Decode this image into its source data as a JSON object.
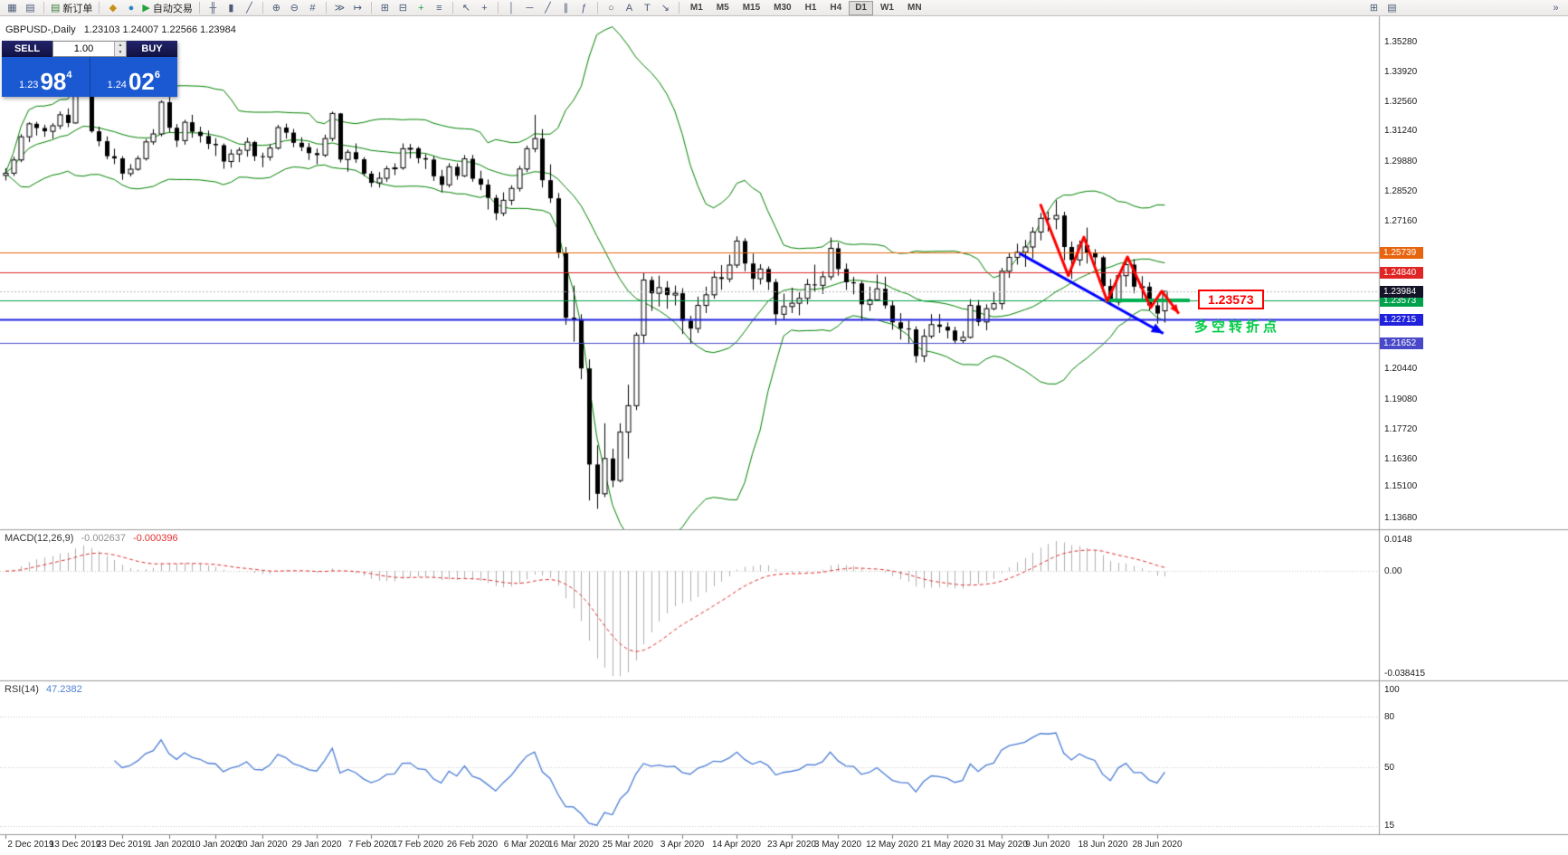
{
  "colors": {
    "bollinger": "#008200",
    "candle_up": "#ffffff",
    "candle_down": "#000000",
    "macd_hist": "#b0b0b0",
    "macd_signal": "#e03030",
    "rsi_line": "#4d7fd6",
    "annotation_red": "#ff0000",
    "annotation_blue": "#0000ff",
    "annotation_green": "#00b050",
    "widget_blue": "#1b59d2",
    "widget_navy": "#15164f"
  },
  "toolbar": {
    "groups": [
      {
        "items": [
          {
            "name": "new-chart-icon",
            "glyph": "▦"
          },
          {
            "name": "profiles-icon",
            "glyph": "▤"
          }
        ]
      },
      {
        "items": [
          {
            "name": "new-order-button",
            "glyph": "▤",
            "glyph_color": "#3a7f3a",
            "label": "新订单"
          }
        ]
      },
      {
        "items": [
          {
            "name": "market-icon",
            "glyph": "◆",
            "glyph_color": "#c89018"
          },
          {
            "name": "signals-icon",
            "glyph": "●",
            "glyph_color": "#2e86c1"
          },
          {
            "name": "autotrading-button",
            "glyph": "▶",
            "glyph_color": "#23a33a",
            "label": "自动交易"
          }
        ]
      },
      {
        "items": [
          {
            "name": "bar-chart-icon",
            "glyph": "╫"
          },
          {
            "name": "candlestick-chart-icon",
            "glyph": "▮"
          },
          {
            "name": "line-chart-icon",
            "glyph": "╱"
          }
        ]
      },
      {
        "items": [
          {
            "name": "zoom-in-icon",
            "glyph": "⊕"
          },
          {
            "name": "zoom-out-icon",
            "glyph": "⊖"
          },
          {
            "name": "grid-icon",
            "glyph": "#"
          }
        ]
      },
      {
        "items": [
          {
            "name": "auto-scroll-icon",
            "glyph": "≫"
          },
          {
            "name": "chart-shift-icon",
            "glyph": "↦"
          }
        ]
      },
      {
        "items": [
          {
            "name": "tile-windows-icon",
            "glyph": "⊞"
          },
          {
            "name": "new-window-icon",
            "glyph": "⊟"
          },
          {
            "name": "indicators-button",
            "glyph": "+",
            "glyph_color": "#1f9e3a"
          },
          {
            "name": "objects-list-icon",
            "glyph": "≡"
          }
        ]
      },
      {
        "items": [
          {
            "name": "cursor-icon",
            "glyph": "↖"
          },
          {
            "name": "crosshair-icon",
            "glyph": "+"
          }
        ]
      },
      {
        "items": [
          {
            "name": "vertical-line-icon",
            "glyph": "│"
          },
          {
            "name": "horizontal-line-icon",
            "glyph": "─"
          },
          {
            "name": "trendline-icon",
            "glyph": "╱"
          },
          {
            "name": "channel-icon",
            "glyph": "∥"
          },
          {
            "name": "fibonacci-icon",
            "glyph": "ƒ"
          }
        ]
      },
      {
        "items": [
          {
            "name": "shapes-icon",
            "glyph": "○"
          },
          {
            "name": "text-icon",
            "glyph": "A"
          },
          {
            "name": "label-icon",
            "glyph": "T"
          },
          {
            "name": "arrows-icon",
            "glyph": "↘"
          }
        ]
      }
    ],
    "timeframes": {
      "items": [
        "M1",
        "M5",
        "M15",
        "M30",
        "H1",
        "H4",
        "D1",
        "W1",
        "MN"
      ],
      "active": "D1"
    },
    "right_icons": [
      {
        "name": "window-arrange-icon",
        "glyph": "⊞"
      },
      {
        "name": "charts-list-icon",
        "glyph": "▤"
      },
      {
        "name": "toolbar-overflow-icon",
        "glyph": "»",
        "gap_before": 160
      }
    ]
  },
  "chart": {
    "symbol_label": "GBPUSD-,Daily",
    "ohlc_label": "1.23103 1.24007 1.22566 1.23984"
  },
  "one_click": {
    "sell_label": "SELL",
    "buy_label": "BUY",
    "lot_value": "1.00",
    "lot_up": "▲",
    "lot_down": "▼",
    "sell_price_small": "1.23",
    "sell_price_big": "98",
    "sell_price_sup": "4",
    "buy_price_small": "1.24",
    "buy_price_big": "02",
    "buy_price_sup": "6"
  },
  "price_axis_ticks": [
    "1.35280",
    "1.33920",
    "1.32560",
    "1.31240",
    "1.29880",
    "1.28520",
    "1.27160",
    "1.20440",
    "1.19080",
    "1.17720",
    "1.16360",
    "1.15100",
    "1.13680"
  ],
  "hlines": [
    {
      "price": 1.25739,
      "label": "1.25739",
      "color": "#e8650f",
      "width": 1
    },
    {
      "price": 1.2484,
      "label": "1.24840",
      "color": "#e02525",
      "width": 1
    },
    {
      "price": 1.23573,
      "label": "1.23573",
      "color": "#00a14b",
      "width": 1
    },
    {
      "price": 1.22715,
      "label": "1.22715",
      "color": "#2020dd",
      "width": 2
    },
    {
      "price": 1.21652,
      "label": "1.21652",
      "color": "#4848c8",
      "width": 1
    }
  ],
  "price_marker": {
    "price": 1.23984,
    "label": "1.23984",
    "bg": "#141428"
  },
  "annotations": {
    "price_callout": "1.23573",
    "turning_point_text": "多空转折点",
    "red_zigzag": [
      [
        133,
        1.2795
      ],
      [
        136.6,
        1.247
      ],
      [
        138.6,
        1.2645
      ],
      [
        141.6,
        1.2355
      ],
      [
        144.2,
        1.2555
      ],
      [
        147.2,
        1.2325
      ],
      [
        148.6,
        1.24
      ],
      [
        150.8,
        1.2298
      ]
    ],
    "blue_arrow": {
      "from": [
        130.3,
        1.2572
      ],
      "to": [
        148.8,
        1.2208
      ]
    },
    "green_segment": {
      "price": 1.23573,
      "from_i": 141.3,
      "to_i": 152.2
    }
  },
  "macd_panel": {
    "name": "MACD(12,26,9)",
    "value_main": "-0.002637",
    "value_signal": "-0.000396",
    "ticks": [
      "0.0148",
      "0.00",
      "-0.038415"
    ]
  },
  "rsi_panel": {
    "name": "RSI(14)",
    "value": "47.2382",
    "ticks": [
      "100",
      "80",
      "50",
      "15"
    ]
  },
  "date_axis": [
    {
      "label": "2 Dec 2019",
      "i": 0
    },
    {
      "label": "13 Dec 2019",
      "i": 9
    },
    {
      "label": "23 Dec 2019",
      "i": 15
    },
    {
      "label": "1 Jan 2020",
      "i": 21
    },
    {
      "label": "10 Jan 2020",
      "i": 27
    },
    {
      "label": "20 Jan 2020",
      "i": 33
    },
    {
      "label": "29 Jan 2020",
      "i": 40
    },
    {
      "label": "7 Feb 2020",
      "i": 47
    },
    {
      "label": "17 Feb 2020",
      "i": 53
    },
    {
      "label": "26 Feb 2020",
      "i": 60
    },
    {
      "label": "6 Mar 2020",
      "i": 67
    },
    {
      "label": "16 Mar 2020",
      "i": 73
    },
    {
      "label": "25 Mar 2020",
      "i": 80
    },
    {
      "label": "3 Apr 2020",
      "i": 87
    },
    {
      "label": "14 Apr 2020",
      "i": 94
    },
    {
      "label": "23 Apr 2020",
      "i": 101
    },
    {
      "label": "3 May 2020",
      "i": 107
    },
    {
      "label": "12 May 2020",
      "i": 114
    },
    {
      "label": "21 May 2020",
      "i": 121
    },
    {
      "label": "31 May 2020",
      "i": 128
    },
    {
      "label": "9 Jun 2020",
      "i": 134
    },
    {
      "label": "18 Jun 2020",
      "i": 141
    },
    {
      "label": "28 Jun 2020",
      "i": 148
    }
  ],
  "chart_data": {
    "type": "candlestick",
    "symbol": "GBPUSD",
    "timeframe": "D1",
    "y_range": [
      1.1319,
      1.3647
    ],
    "indicators": [
      "Bollinger(20,2)",
      "MACD(12,26,9)",
      "RSI(14)"
    ],
    "candles": [
      [
        1.2925,
        1.2958,
        1.2902,
        1.2935
      ],
      [
        1.2935,
        1.301,
        1.2922,
        1.2995
      ],
      [
        1.2995,
        1.3112,
        1.2985,
        1.31
      ],
      [
        1.31,
        1.3166,
        1.3076,
        1.3159
      ],
      [
        1.3159,
        1.3168,
        1.3106,
        1.314
      ],
      [
        1.314,
        1.3155,
        1.31,
        1.3125
      ],
      [
        1.3125,
        1.3162,
        1.3092,
        1.315
      ],
      [
        1.315,
        1.3215,
        1.3135,
        1.32
      ],
      [
        1.32,
        1.3229,
        1.3144,
        1.3163
      ],
      [
        1.3163,
        1.3514,
        1.316,
        1.3332
      ],
      [
        1.3332,
        1.3422,
        1.3305,
        1.3328
      ],
      [
        1.3328,
        1.3336,
        1.3118,
        1.3125
      ],
      [
        1.3125,
        1.3146,
        1.3057,
        1.308
      ],
      [
        1.308,
        1.3102,
        1.2998,
        1.3012
      ],
      [
        1.3012,
        1.3046,
        1.2976,
        1.3002
      ],
      [
        1.3002,
        1.3012,
        1.2905,
        1.2933
      ],
      [
        1.2933,
        1.2976,
        1.292,
        1.2953
      ],
      [
        1.2953,
        1.3014,
        1.2946,
        1.3001
      ],
      [
        1.3001,
        1.309,
        1.2992,
        1.3077
      ],
      [
        1.3077,
        1.3135,
        1.3064,
        1.3113
      ],
      [
        1.3113,
        1.3265,
        1.3102,
        1.3257
      ],
      [
        1.3257,
        1.3284,
        1.3121,
        1.3141
      ],
      [
        1.3141,
        1.3158,
        1.3054,
        1.3083
      ],
      [
        1.3083,
        1.3177,
        1.3064,
        1.3166
      ],
      [
        1.3166,
        1.32,
        1.3096,
        1.3123
      ],
      [
        1.3123,
        1.3146,
        1.3074,
        1.3104
      ],
      [
        1.3104,
        1.3128,
        1.3044,
        1.3068
      ],
      [
        1.3068,
        1.3094,
        1.3013,
        1.3062
      ],
      [
        1.3062,
        1.307,
        1.2955,
        1.2988
      ],
      [
        1.2988,
        1.3043,
        1.296,
        1.3022
      ],
      [
        1.3022,
        1.3052,
        1.2985,
        1.3039
      ],
      [
        1.3039,
        1.3096,
        1.301,
        1.3076
      ],
      [
        1.3076,
        1.3082,
        1.299,
        1.3012
      ],
      [
        1.3012,
        1.3028,
        1.2962,
        1.3008
      ],
      [
        1.3008,
        1.3066,
        1.2992,
        1.3049
      ],
      [
        1.3049,
        1.3154,
        1.3042,
        1.3142
      ],
      [
        1.3142,
        1.316,
        1.3092,
        1.3119
      ],
      [
        1.3119,
        1.3136,
        1.3053,
        1.3073
      ],
      [
        1.3073,
        1.3098,
        1.3035,
        1.3053
      ],
      [
        1.3053,
        1.3072,
        1.2995,
        1.3026
      ],
      [
        1.3026,
        1.3047,
        1.2976,
        1.3017
      ],
      [
        1.3017,
        1.311,
        1.3008,
        1.3092
      ],
      [
        1.3092,
        1.3214,
        1.308,
        1.3206
      ],
      [
        1.3206,
        1.3208,
        1.2984,
        1.2997
      ],
      [
        1.2997,
        1.3042,
        1.2942,
        1.303
      ],
      [
        1.303,
        1.307,
        1.2982,
        1.2998
      ],
      [
        1.2998,
        1.3008,
        1.2922,
        1.2933
      ],
      [
        1.2933,
        1.2945,
        1.2872,
        1.2891
      ],
      [
        1.2891,
        1.294,
        1.287,
        1.2912
      ],
      [
        1.2912,
        1.2968,
        1.2896,
        1.2955
      ],
      [
        1.2955,
        1.298,
        1.2926,
        1.2959
      ],
      [
        1.2959,
        1.307,
        1.295,
        1.3046
      ],
      [
        1.3046,
        1.3068,
        1.3002,
        1.3048
      ],
      [
        1.3048,
        1.3055,
        1.298,
        1.3003
      ],
      [
        1.3003,
        1.3022,
        1.2954,
        1.2997
      ],
      [
        1.2997,
        1.3012,
        1.29,
        1.2921
      ],
      [
        1.2921,
        1.295,
        1.2848,
        1.2882
      ],
      [
        1.2882,
        1.298,
        1.287,
        1.2964
      ],
      [
        1.2964,
        1.298,
        1.2905,
        1.2923
      ],
      [
        1.2923,
        1.3017,
        1.2917,
        1.3
      ],
      [
        1.3,
        1.3018,
        1.2896,
        1.291
      ],
      [
        1.291,
        1.2946,
        1.2858,
        1.2883
      ],
      [
        1.2883,
        1.2906,
        1.277,
        1.2823
      ],
      [
        1.2823,
        1.2837,
        1.2722,
        1.2753
      ],
      [
        1.2753,
        1.2848,
        1.274,
        1.2812
      ],
      [
        1.2812,
        1.288,
        1.279,
        1.2866
      ],
      [
        1.2866,
        1.2968,
        1.2852,
        1.2954
      ],
      [
        1.2954,
        1.306,
        1.294,
        1.3046
      ],
      [
        1.3046,
        1.32,
        1.303,
        1.3092
      ],
      [
        1.3092,
        1.3135,
        1.287,
        1.2903
      ],
      [
        1.2903,
        1.2975,
        1.28,
        1.2821
      ],
      [
        1.2821,
        1.2845,
        1.255,
        1.2575
      ],
      [
        1.2575,
        1.26,
        1.2247,
        1.2279
      ],
      [
        1.2279,
        1.2425,
        1.217,
        1.2269
      ],
      [
        1.2269,
        1.2295,
        1.2,
        1.2049
      ],
      [
        1.2049,
        1.209,
        1.145,
        1.1613
      ],
      [
        1.1613,
        1.17,
        1.1412,
        1.148
      ],
      [
        1.148,
        1.18,
        1.1465,
        1.164
      ],
      [
        1.164,
        1.1685,
        1.151,
        1.154
      ],
      [
        1.154,
        1.18,
        1.1532,
        1.176
      ],
      [
        1.176,
        1.1975,
        1.164,
        1.188
      ],
      [
        1.188,
        1.2212,
        1.186,
        1.22
      ],
      [
        1.22,
        1.2485,
        1.216,
        1.245
      ],
      [
        1.245,
        1.2466,
        1.231,
        1.239
      ],
      [
        1.239,
        1.247,
        1.233,
        1.2416
      ],
      [
        1.2416,
        1.2445,
        1.232,
        1.2382
      ],
      [
        1.2382,
        1.2425,
        1.2335,
        1.239
      ],
      [
        1.239,
        1.2413,
        1.2205,
        1.2265
      ],
      [
        1.2265,
        1.2288,
        1.2163,
        1.223
      ],
      [
        1.223,
        1.2375,
        1.221,
        1.2335
      ],
      [
        1.2335,
        1.242,
        1.23,
        1.2383
      ],
      [
        1.2383,
        1.249,
        1.2365,
        1.2463
      ],
      [
        1.2463,
        1.2518,
        1.2406,
        1.2455
      ],
      [
        1.2455,
        1.2565,
        1.244,
        1.2518
      ],
      [
        1.2518,
        1.2648,
        1.2505,
        1.2627
      ],
      [
        1.2627,
        1.264,
        1.249,
        1.2525
      ],
      [
        1.2525,
        1.257,
        1.2405,
        1.2456
      ],
      [
        1.2456,
        1.2522,
        1.243,
        1.25
      ],
      [
        1.25,
        1.2512,
        1.2405,
        1.2441
      ],
      [
        1.2441,
        1.2455,
        1.2247,
        1.2295
      ],
      [
        1.2295,
        1.2388,
        1.227,
        1.233
      ],
      [
        1.233,
        1.2415,
        1.23,
        1.2345
      ],
      [
        1.2345,
        1.2395,
        1.229,
        1.2367
      ],
      [
        1.2367,
        1.2455,
        1.234,
        1.243
      ],
      [
        1.243,
        1.252,
        1.2395,
        1.2426
      ],
      [
        1.2426,
        1.249,
        1.2387,
        1.2465
      ],
      [
        1.2465,
        1.2643,
        1.245,
        1.2594
      ],
      [
        1.2594,
        1.262,
        1.247,
        1.25
      ],
      [
        1.25,
        1.2525,
        1.2405,
        1.244
      ],
      [
        1.244,
        1.2465,
        1.2385,
        1.2435
      ],
      [
        1.2435,
        1.2445,
        1.2265,
        1.234
      ],
      [
        1.234,
        1.242,
        1.231,
        1.236
      ],
      [
        1.236,
        1.2475,
        1.2355,
        1.241
      ],
      [
        1.241,
        1.2465,
        1.232,
        1.2335
      ],
      [
        1.2335,
        1.2355,
        1.2225,
        1.2258
      ],
      [
        1.2258,
        1.23,
        1.218,
        1.223
      ],
      [
        1.223,
        1.2265,
        1.216,
        1.2226
      ],
      [
        1.2226,
        1.224,
        1.2075,
        1.2105
      ],
      [
        1.2105,
        1.2228,
        1.2078,
        1.2195
      ],
      [
        1.2195,
        1.2295,
        1.2185,
        1.2248
      ],
      [
        1.2248,
        1.2296,
        1.221,
        1.2238
      ],
      [
        1.2238,
        1.2258,
        1.2185,
        1.2221
      ],
      [
        1.2221,
        1.2238,
        1.216,
        1.2175
      ],
      [
        1.2175,
        1.2218,
        1.2162,
        1.219
      ],
      [
        1.219,
        1.2363,
        1.2185,
        1.2335
      ],
      [
        1.2335,
        1.236,
        1.2242,
        1.226
      ],
      [
        1.226,
        1.234,
        1.2222,
        1.232
      ],
      [
        1.232,
        1.2395,
        1.2312,
        1.2343
      ],
      [
        1.2343,
        1.2505,
        1.2316,
        1.249
      ],
      [
        1.249,
        1.2575,
        1.246,
        1.2553
      ],
      [
        1.2553,
        1.2615,
        1.252,
        1.2576
      ],
      [
        1.2576,
        1.2632,
        1.251,
        1.26
      ],
      [
        1.26,
        1.269,
        1.2548,
        1.2668
      ],
      [
        1.2668,
        1.2755,
        1.263,
        1.273
      ],
      [
        1.273,
        1.276,
        1.267,
        1.2727
      ],
      [
        1.2727,
        1.2812,
        1.268,
        1.2743
      ],
      [
        1.2743,
        1.276,
        1.254,
        1.26
      ],
      [
        1.26,
        1.2625,
        1.2455,
        1.2541
      ],
      [
        1.2541,
        1.263,
        1.2515,
        1.2608
      ],
      [
        1.2608,
        1.2688,
        1.2525,
        1.2574
      ],
      [
        1.2574,
        1.259,
        1.251,
        1.2553
      ],
      [
        1.2553,
        1.256,
        1.24,
        1.2423
      ],
      [
        1.2423,
        1.2455,
        1.2335,
        1.235
      ],
      [
        1.235,
        1.2485,
        1.2335,
        1.247
      ],
      [
        1.247,
        1.2542,
        1.242,
        1.252
      ],
      [
        1.252,
        1.2545,
        1.239,
        1.242
      ],
      [
        1.242,
        1.2468,
        1.2365,
        1.242
      ],
      [
        1.242,
        1.244,
        1.2312,
        1.2335
      ],
      [
        1.2335,
        1.2359,
        1.2252,
        1.2298
      ],
      [
        1.23103,
        1.24007,
        1.22566,
        1.23984
      ]
    ]
  }
}
